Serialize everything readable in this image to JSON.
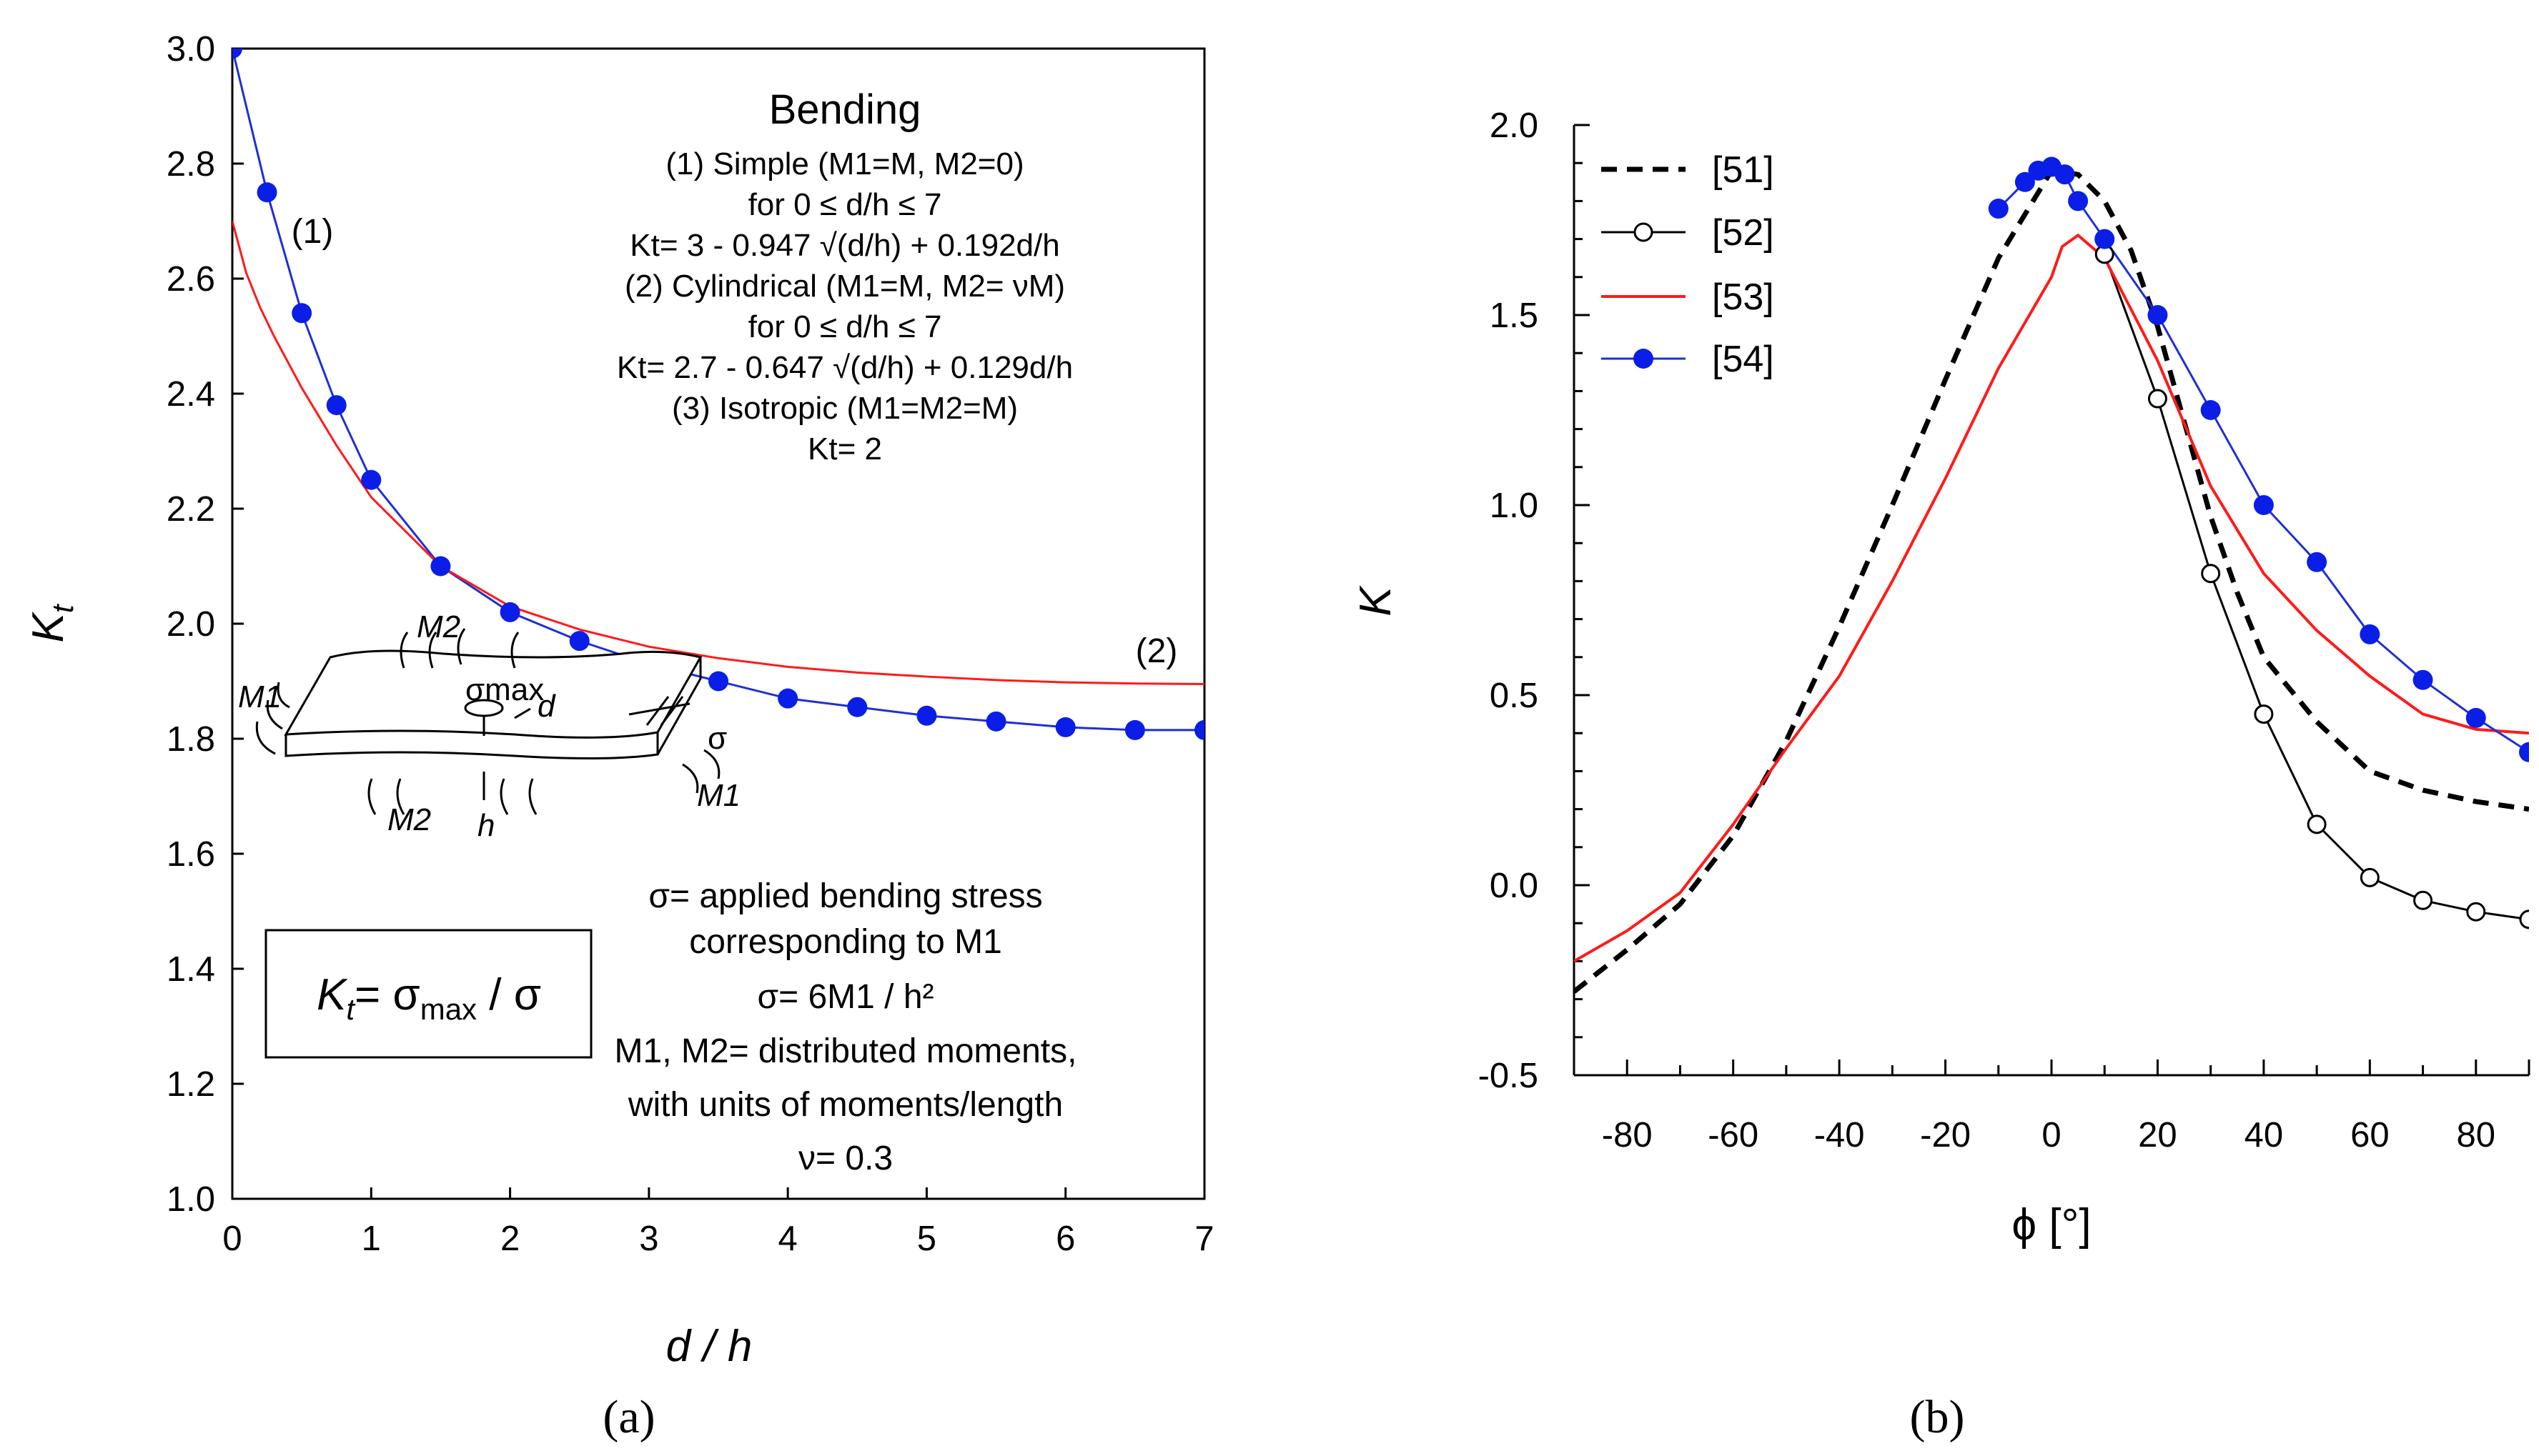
{
  "panel_a": {
    "label": "(a)",
    "ann_title": "Bending",
    "ann_simple": "(1) Simple (M1=M, M2=0)",
    "ann_range1": "for 0 ≤ d/h ≤ 7",
    "ann_eq1": "Kt= 3 - 0.947 √(d/h) + 0.192d/h",
    "ann_cyl": "(2) Cylindrical (M1=M, M2= νM)",
    "ann_range2": "for 0 ≤ d/h ≤ 7",
    "ann_eq2": "Kt= 2.7 - 0.647 √(d/h) + 0.129d/h",
    "ann_iso": "(3) Isotropic (M1=M2=M)",
    "ann_eq3": "Kt= 2",
    "curve_label_1": "(1)",
    "curve_label_2": "(2)",
    "formula_box": "Kt= σmax / σ",
    "note_sigma": "σ= applied bending stress",
    "note_corr": "corresponding to M1",
    "note_sigma_eq": "σ= 6M1 / h²",
    "note_moments": "M1, M2= distributed moments,",
    "note_units": "with units of moments/length",
    "note_nu": "ν= 0.3",
    "sketch_labels": [
      "M2",
      "M1",
      "σmax",
      "d",
      "σ",
      "M1",
      "M2",
      "h"
    ]
  },
  "panel_b": {
    "label": "(b)"
  },
  "colors": {
    "blue": "#1f2fd6",
    "marker": "#0a1ee8",
    "red": "#ff1a1a",
    "black": "#000000"
  },
  "chart_data": [
    {
      "type": "line",
      "xlabel": "d / h",
      "ylabel": "Kt",
      "xlim": [
        0,
        7
      ],
      "ylim": [
        1.0,
        3.0
      ],
      "xticks": [
        "0",
        "1",
        "2",
        "3",
        "4",
        "5",
        "6",
        "7"
      ],
      "yticks": [
        "1.0",
        "1.2",
        "1.4",
        "1.6",
        "1.8",
        "2.0",
        "2.2",
        "2.4",
        "2.6",
        "2.8",
        "3.0"
      ],
      "series": [
        {
          "name": "(1) Simple",
          "style": "blue-line-filled-circles",
          "x": [
            0,
            0.25,
            0.5,
            0.75,
            1,
            1.5,
            2,
            2.5,
            3,
            3.5,
            4,
            4.5,
            5,
            5.5,
            6,
            6.5,
            7
          ],
          "y": [
            3.0,
            2.75,
            2.54,
            2.38,
            2.25,
            2.1,
            2.02,
            1.97,
            1.93,
            1.9,
            1.87,
            1.855,
            1.84,
            1.83,
            1.82,
            1.815,
            1.815
          ]
        },
        {
          "name": "(2) Cylindrical",
          "style": "red-line",
          "x": [
            0,
            0.1,
            0.2,
            0.3,
            0.5,
            0.75,
            1,
            1.5,
            2,
            2.5,
            3,
            3.5,
            4,
            4.5,
            5,
            5.5,
            6,
            6.5,
            7
          ],
          "y": [
            2.7,
            2.61,
            2.55,
            2.5,
            2.41,
            2.31,
            2.22,
            2.1,
            2.03,
            1.99,
            1.96,
            1.94,
            1.925,
            1.915,
            1.908,
            1.902,
            1.898,
            1.896,
            1.895
          ]
        }
      ]
    },
    {
      "type": "line",
      "xlabel": "ϕ [°]",
      "ylabel": "K",
      "xlim": [
        -90,
        90
      ],
      "ylim": [
        -0.5,
        2.0
      ],
      "xticks": [
        "-80",
        "-60",
        "-40",
        "-20",
        "0",
        "20",
        "40",
        "60",
        "80"
      ],
      "yticks": [
        "-0.5",
        "0.0",
        "0.5",
        "1.0",
        "1.5",
        "2.0"
      ],
      "legend": [
        "[51]",
        "[52]",
        "[53]",
        "[54]"
      ],
      "legend_position": "top-left",
      "series": [
        {
          "name": "[51]",
          "style": "black-dashed",
          "x": [
            -90,
            -80,
            -70,
            -60,
            -50,
            -40,
            -30,
            -20,
            -10,
            0,
            5,
            10,
            15,
            20,
            25,
            30,
            35,
            40,
            50,
            60,
            70,
            80,
            90
          ],
          "y": [
            -0.28,
            -0.17,
            -0.05,
            0.13,
            0.38,
            0.68,
            1.0,
            1.33,
            1.65,
            1.88,
            1.87,
            1.8,
            1.67,
            1.47,
            1.22,
            0.97,
            0.77,
            0.6,
            0.43,
            0.3,
            0.25,
            0.22,
            0.2
          ]
        },
        {
          "name": "[52]",
          "style": "black-line-open-circles",
          "x": [
            10,
            20,
            30,
            40,
            50,
            60,
            70,
            80,
            90
          ],
          "y": [
            1.66,
            1.28,
            0.82,
            0.45,
            0.16,
            0.02,
            -0.04,
            -0.07,
            -0.09
          ]
        },
        {
          "name": "[53]",
          "style": "red-line",
          "x": [
            -90,
            -80,
            -70,
            -60,
            -50,
            -40,
            -30,
            -20,
            -10,
            0,
            2,
            5,
            10,
            20,
            30,
            40,
            50,
            60,
            70,
            80,
            90
          ],
          "y": [
            -0.2,
            -0.12,
            -0.02,
            0.16,
            0.36,
            0.55,
            0.8,
            1.07,
            1.36,
            1.6,
            1.68,
            1.71,
            1.65,
            1.38,
            1.05,
            0.82,
            0.67,
            0.55,
            0.45,
            0.41,
            0.4
          ]
        },
        {
          "name": "[54]",
          "style": "blue-line-filled-circles",
          "x": [
            -10,
            -5,
            -2.5,
            0,
            2.5,
            5,
            10,
            20,
            30,
            40,
            50,
            60,
            70,
            80,
            90
          ],
          "y": [
            1.78,
            1.85,
            1.88,
            1.89,
            1.87,
            1.8,
            1.7,
            1.5,
            1.25,
            1.0,
            0.85,
            0.66,
            0.54,
            0.44,
            0.35
          ]
        }
      ]
    }
  ]
}
